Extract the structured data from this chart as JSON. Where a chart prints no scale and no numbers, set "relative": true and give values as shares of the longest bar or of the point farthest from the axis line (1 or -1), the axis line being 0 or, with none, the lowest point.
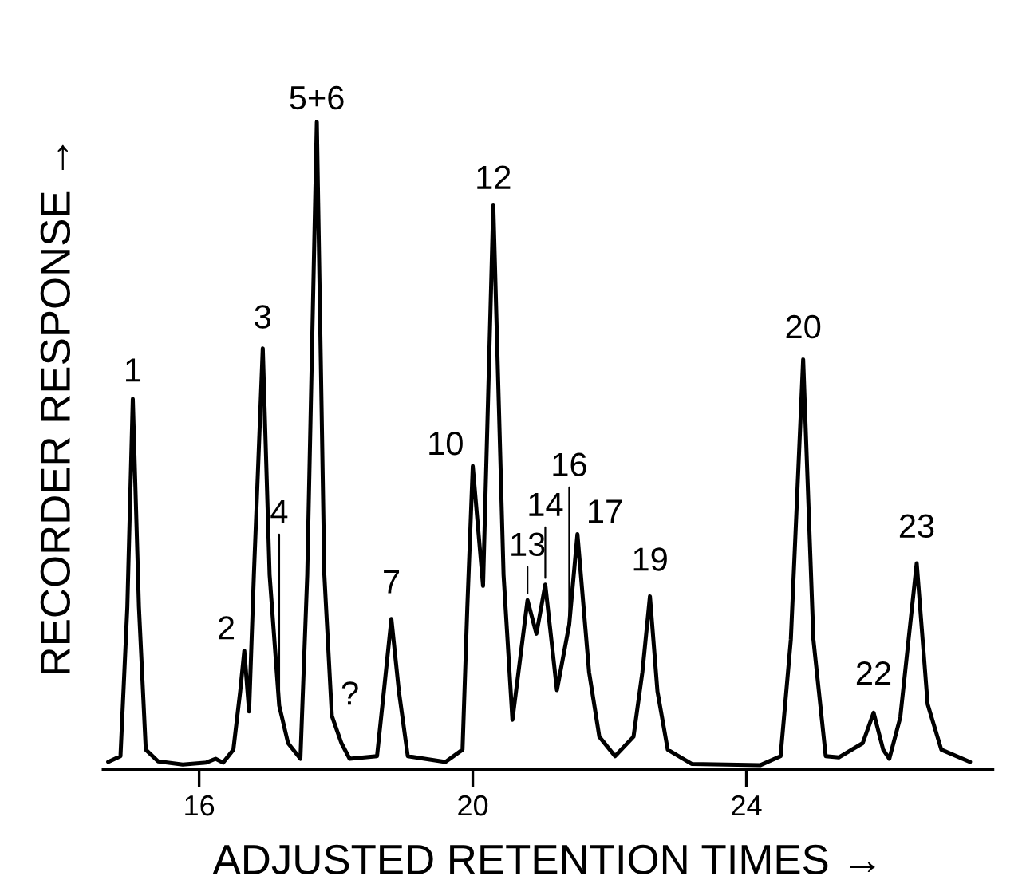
{
  "chart_data": {
    "type": "line",
    "relative": true,
    "xlabel": "ADJUSTED RETENTION TIMES →",
    "ylabel": "RECORDER RESPONSE →",
    "xlim": [
      14.6,
      27.6
    ],
    "xticks": [
      16,
      20,
      24
    ],
    "grid": false,
    "marker": "none",
    "line_style": "solid",
    "series": [
      {
        "color": "#000000",
        "x": [
          14.67,
          14.85,
          14.95,
          15.03,
          15.12,
          15.22,
          15.4,
          15.76,
          16.1,
          16.24,
          16.35,
          16.5,
          16.6,
          16.66,
          16.73,
          16.8,
          16.93,
          17.03,
          17.17,
          17.3,
          17.48,
          17.58,
          17.72,
          17.83,
          17.94,
          18.08,
          18.2,
          18.6,
          18.7,
          18.81,
          18.92,
          19.05,
          19.6,
          19.85,
          19.92,
          20.0,
          20.15,
          20.3,
          20.45,
          20.58,
          20.8,
          20.93,
          21.06,
          21.23,
          21.41,
          21.53,
          21.7,
          21.85,
          22.08,
          22.35,
          22.48,
          22.59,
          22.7,
          22.85,
          23.2,
          24.2,
          24.5,
          24.65,
          24.83,
          24.98,
          25.16,
          25.35,
          25.7,
          25.86,
          26.0,
          26.09,
          26.25,
          26.49,
          26.65,
          26.85,
          27.27
        ],
        "values": [
          0.011,
          0.02,
          0.25,
          0.572,
          0.25,
          0.03,
          0.012,
          0.007,
          0.01,
          0.016,
          0.01,
          0.03,
          0.12,
          0.183,
          0.089,
          0.3,
          0.65,
          0.3,
          0.098,
          0.04,
          0.016,
          0.3,
          1.0,
          0.3,
          0.082,
          0.04,
          0.016,
          0.02,
          0.12,
          0.232,
          0.12,
          0.02,
          0.011,
          0.03,
          0.25,
          0.468,
          0.283,
          0.871,
          0.3,
          0.076,
          0.261,
          0.209,
          0.285,
          0.122,
          0.223,
          0.363,
          0.15,
          0.05,
          0.02,
          0.05,
          0.15,
          0.267,
          0.12,
          0.03,
          0.008,
          0.006,
          0.02,
          0.2,
          0.633,
          0.2,
          0.02,
          0.018,
          0.04,
          0.087,
          0.03,
          0.016,
          0.08,
          0.318,
          0.1,
          0.03,
          0.011
        ]
      }
    ],
    "annotations": [
      {
        "text": "1",
        "x": 15.03,
        "y": 0.572
      },
      {
        "text": "2",
        "x": 16.66,
        "y": 0.183
      },
      {
        "text": "3",
        "x": 16.93,
        "y": 0.65
      },
      {
        "text": "4",
        "x": 17.17,
        "y": 0.098
      },
      {
        "text": "5+6",
        "x": 17.72,
        "y": 1.0
      },
      {
        "text": "?",
        "x": 17.94,
        "y": 0.082
      },
      {
        "text": "7",
        "x": 18.81,
        "y": 0.232
      },
      {
        "text": "10",
        "x": 20.0,
        "y": 0.468
      },
      {
        "text": "12",
        "x": 20.3,
        "y": 0.871
      },
      {
        "text": "13",
        "x": 20.8,
        "y": 0.261
      },
      {
        "text": "14",
        "x": 21.06,
        "y": 0.285
      },
      {
        "text": "16",
        "x": 21.41,
        "y": 0.223
      },
      {
        "text": "17",
        "x": 21.53,
        "y": 0.363
      },
      {
        "text": "19",
        "x": 22.59,
        "y": 0.267
      },
      {
        "text": "20",
        "x": 24.83,
        "y": 0.633
      },
      {
        "text": "22",
        "x": 25.86,
        "y": 0.087
      },
      {
        "text": "23",
        "x": 26.49,
        "y": 0.318
      }
    ]
  }
}
